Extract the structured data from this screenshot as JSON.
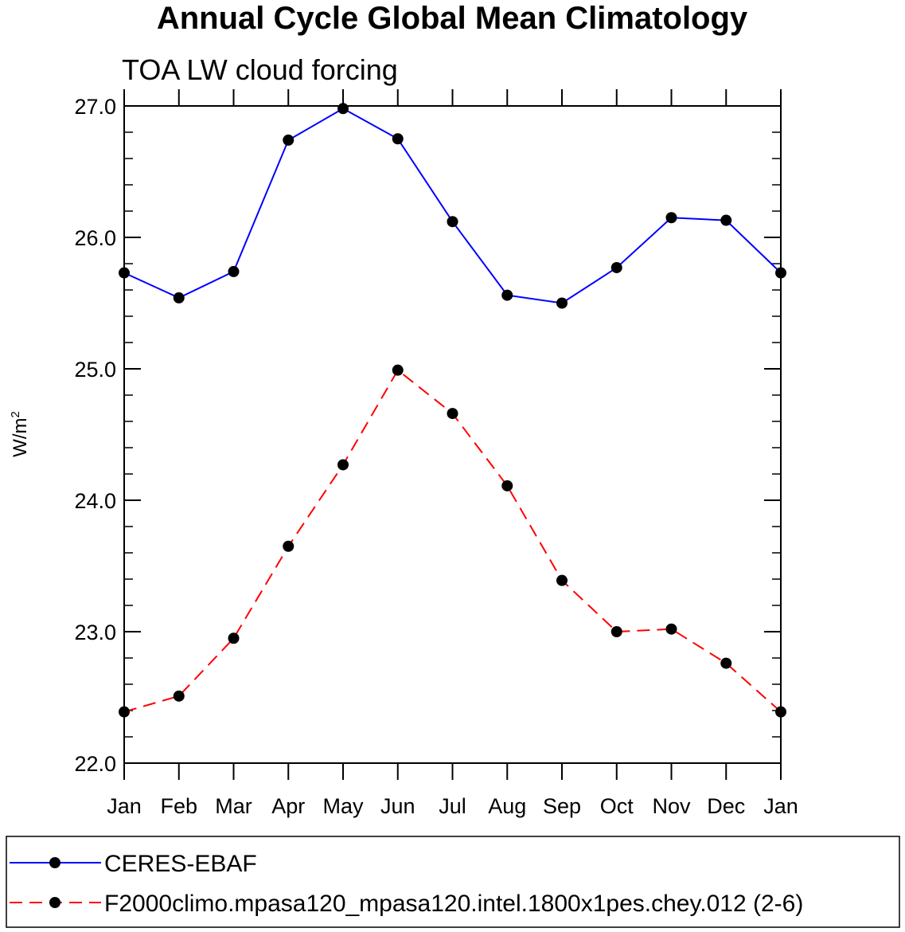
{
  "chart_data": {
    "type": "line",
    "title": "Annual Cycle Global Mean Climatology",
    "subtitle": "TOA LW cloud forcing",
    "ylabel": "W/m",
    "ylabel_superscript": "2",
    "xlabel": "",
    "categories": [
      "Jan",
      "Feb",
      "Mar",
      "Apr",
      "May",
      "Jun",
      "Jul",
      "Aug",
      "Sep",
      "Oct",
      "Nov",
      "Dec",
      "Jan"
    ],
    "ylim": [
      22.0,
      27.0
    ],
    "yticks": [
      22.0,
      23.0,
      24.0,
      25.0,
      26.0,
      27.0
    ],
    "ytick_labels": [
      "22.0",
      "23.0",
      "24.0",
      "25.0",
      "26.0",
      "27.0"
    ],
    "grid": false,
    "legend_position": "bottom",
    "series": [
      {
        "name": "CERES-EBAF",
        "color": "#0000ff",
        "dash": "solid",
        "marker": "circle",
        "values": [
          25.73,
          25.54,
          25.74,
          26.74,
          26.98,
          26.75,
          26.12,
          25.56,
          25.5,
          25.77,
          26.15,
          26.13,
          25.73
        ]
      },
      {
        "name": "F2000climo.mpasa120_mpasa120.intel.1800x1pes.chey.012 (2-6)",
        "color": "#ff0000",
        "dash": "dashed",
        "marker": "circle",
        "values": [
          22.39,
          22.51,
          22.95,
          23.65,
          24.27,
          24.99,
          24.66,
          24.11,
          23.39,
          23.0,
          23.02,
          22.76,
          22.39
        ]
      }
    ]
  }
}
